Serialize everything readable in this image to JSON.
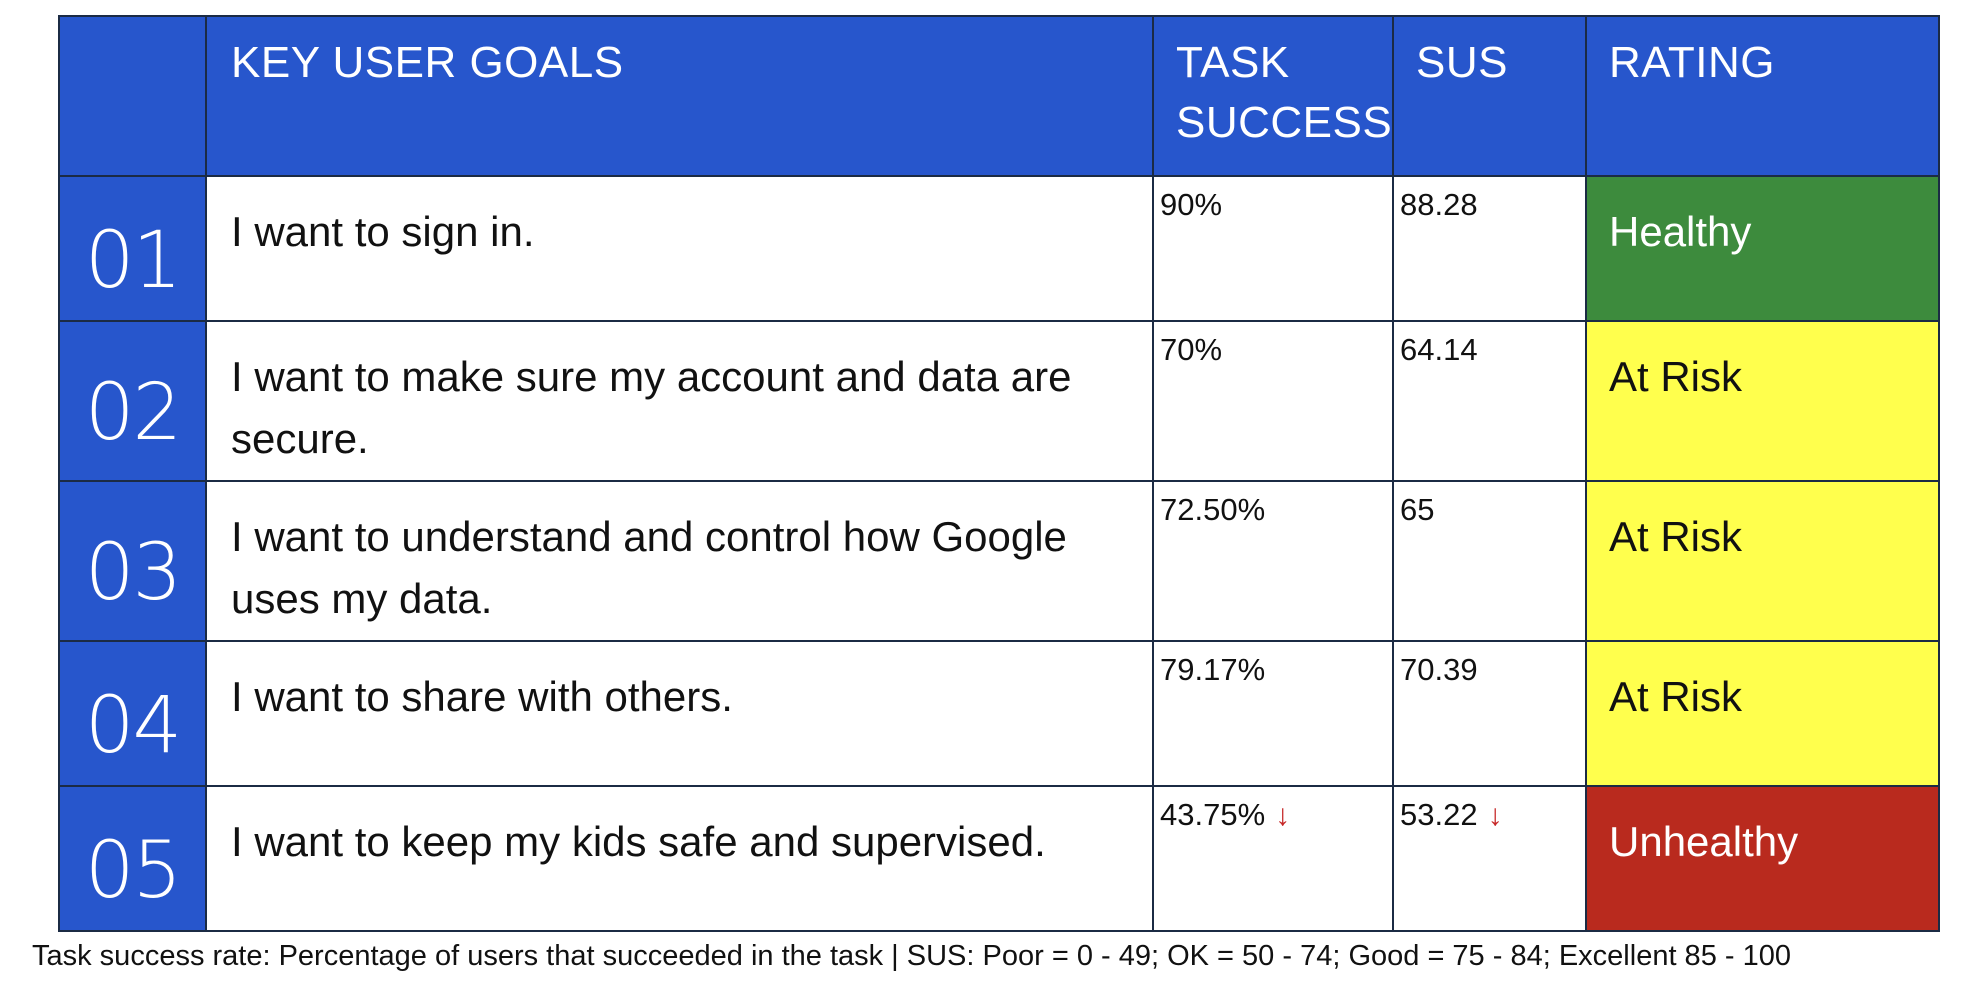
{
  "header": {
    "num": "",
    "goals": "KEY USER GOALS",
    "task_success": "TASK SUCCESS",
    "sus": "SUS",
    "rating": "RATING"
  },
  "rows": [
    {
      "num": "01",
      "goal": "I want to sign in.",
      "task_success": "90%",
      "sus": "88.28",
      "rating": "Healthy",
      "rating_color": "#3d8b3d",
      "down": false
    },
    {
      "num": "02",
      "goal": "I want to make sure my account and data are secure.",
      "task_success": "70%",
      "sus": "64.14",
      "rating": "At Risk",
      "rating_color": "#ffff4d",
      "down": false
    },
    {
      "num": "03",
      "goal": "I want to understand and control how Google uses my data.",
      "task_success": "72.50%",
      "sus": "65",
      "rating": "At Risk",
      "rating_color": "#ffff4d",
      "down": false
    },
    {
      "num": "04",
      "goal": "I want to share with others.",
      "task_success": "79.17%",
      "sus": "70.39",
      "rating": "At Risk",
      "rating_color": "#ffff4d",
      "down": false
    },
    {
      "num": "05",
      "goal": "I want to keep my kids safe and supervised.",
      "task_success": "43.75%",
      "sus": "53.22",
      "rating": "Unhealthy",
      "rating_color": "#b92a1e",
      "down": true
    }
  ],
  "icons": {
    "down_arrow": "down-arrow-icon",
    "down_arrow_glyph": "↓",
    "down_arrow_color": "#c62828"
  },
  "colors": {
    "header_bg": "#2756cc",
    "border": "#1b2b44"
  },
  "footnote": "Task success rate: Percentage of users that succeeded in the task | SUS: Poor = 0 - 49; OK = 50 - 74; Good = 75 - 84; Excellent 85 - 100"
}
